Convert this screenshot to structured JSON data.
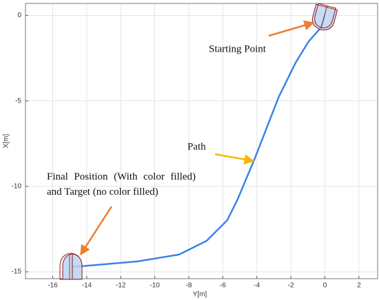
{
  "chart_data": {
    "type": "line",
    "x_label": "Y[m]",
    "y_label": "X[m]",
    "x": [
      0,
      -0.24,
      -0.96,
      -1.7,
      -2.7,
      -4.12,
      -5.14,
      -5.74,
      -6.96,
      -8.58,
      -11.01,
      -13.45,
      -14.86
    ],
    "series": [
      {
        "name": "Path",
        "color": "#3b82e6",
        "values": [
          0,
          -0.72,
          -1.53,
          -2.73,
          -4.74,
          -8.36,
          -10.78,
          -11.98,
          -13.19,
          -13.99,
          -14.39,
          -14.6,
          -14.72
        ]
      }
    ],
    "xlim": [
      -17.6,
      3.1
    ],
    "ylim": [
      -15.4,
      0.7
    ],
    "xticks": [
      -16,
      -14,
      -12,
      -10,
      -8,
      -6,
      -4,
      -2,
      0,
      2
    ],
    "yticks": [
      -15,
      -10,
      -5,
      0
    ],
    "grid": true,
    "annotations": [
      "Starting Point",
      "Path",
      "Final Position (With color filled) and Target (no color filled)"
    ]
  }
}
